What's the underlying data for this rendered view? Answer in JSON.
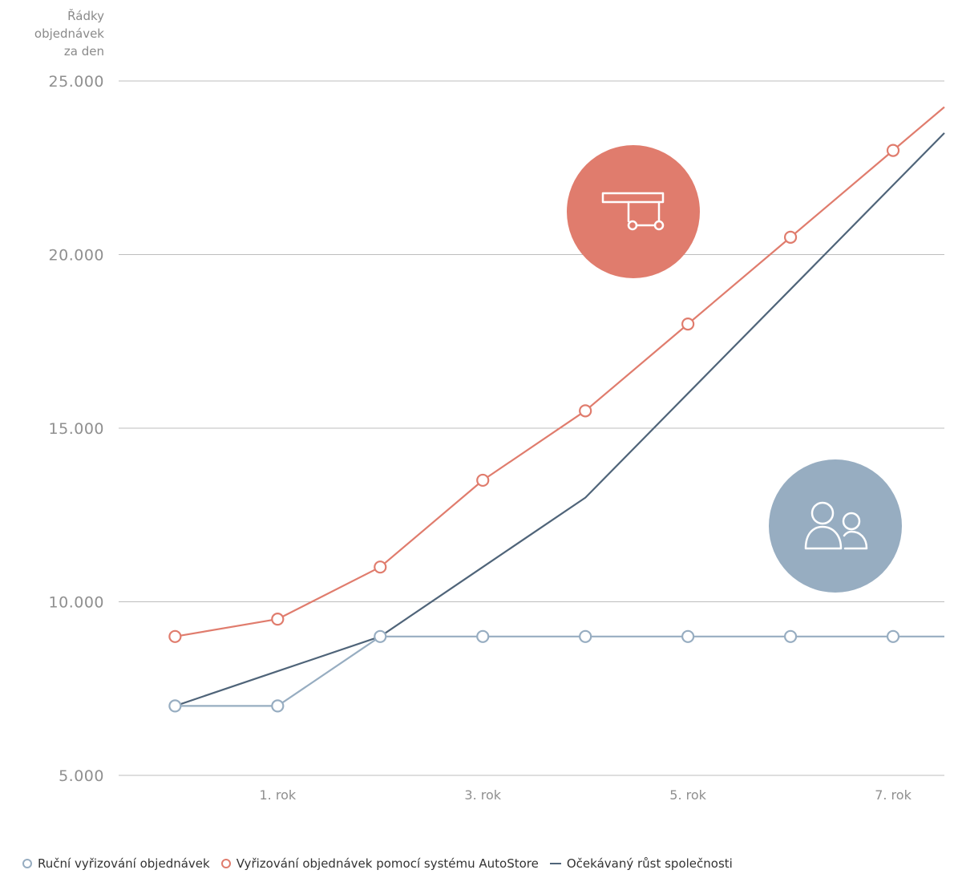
{
  "chart_data": {
    "type": "line",
    "ylabel": "Řádky objednávek za den",
    "ylabel_lines": [
      "Řádky",
      "objednávek",
      "za den"
    ],
    "yticks": [
      {
        "value": 25000,
        "label": "25.000"
      },
      {
        "value": 20000,
        "label": "20.000"
      },
      {
        "value": 15000,
        "label": "15.000"
      },
      {
        "value": 10000,
        "label": "10.000"
      },
      {
        "value": 5000,
        "label": "5.000"
      }
    ],
    "ylim": [
      5000,
      25000
    ],
    "xlim": [
      -0.55,
      7.5
    ],
    "xticks": [
      {
        "value": 1,
        "label": "1. rok"
      },
      {
        "value": 3,
        "label": "3. rok"
      },
      {
        "value": 5,
        "label": "5. rok"
      },
      {
        "value": 7,
        "label": "7. rok"
      }
    ],
    "grid": true,
    "series": [
      {
        "name": "Ruční vyřizování objednávek",
        "color": "#97adc1",
        "markers": true,
        "points": [
          [
            0,
            7000
          ],
          [
            1,
            7000
          ],
          [
            2,
            9000
          ],
          [
            3,
            9000
          ],
          [
            4,
            9000
          ],
          [
            5,
            9000
          ],
          [
            6,
            9000
          ],
          [
            7,
            9000
          ]
        ],
        "extend_to": [
          7.5,
          9000
        ]
      },
      {
        "name": "Vyřizování objednávek pomocí systému AutoStore",
        "color": "#e07c6d",
        "markers": true,
        "points": [
          [
            0,
            9000
          ],
          [
            1,
            9500
          ],
          [
            2,
            11000
          ],
          [
            3,
            13500
          ],
          [
            4,
            15500
          ],
          [
            5,
            18000
          ],
          [
            6,
            20500
          ],
          [
            7,
            23000
          ]
        ],
        "extend_to": [
          7.5,
          24250
        ]
      },
      {
        "name": "Očekávaný růst společnosti",
        "color": "#4f6479",
        "markers": false,
        "points": [
          [
            0,
            7000
          ],
          [
            1,
            8000
          ],
          [
            2,
            9000
          ],
          [
            3,
            11000
          ],
          [
            4,
            13000
          ],
          [
            5,
            16000
          ],
          [
            6,
            19000
          ],
          [
            7,
            22000
          ],
          [
            7.5,
            23500
          ]
        ]
      }
    ],
    "badges": [
      {
        "icon": "autostore-robot-icon",
        "color": "#e07c6d"
      },
      {
        "icon": "people-icon",
        "color": "#97adc1"
      }
    ]
  },
  "legend": [
    {
      "marker": "circle",
      "color": "#97adc1",
      "label": "Ruční vyřizování objednávek"
    },
    {
      "marker": "circle",
      "color": "#e07c6d",
      "label": "Vyřizování objednávek pomocí systému AutoStore"
    },
    {
      "marker": "line",
      "color": "#4f6479",
      "label": "Očekávaný růst společnosti"
    }
  ]
}
